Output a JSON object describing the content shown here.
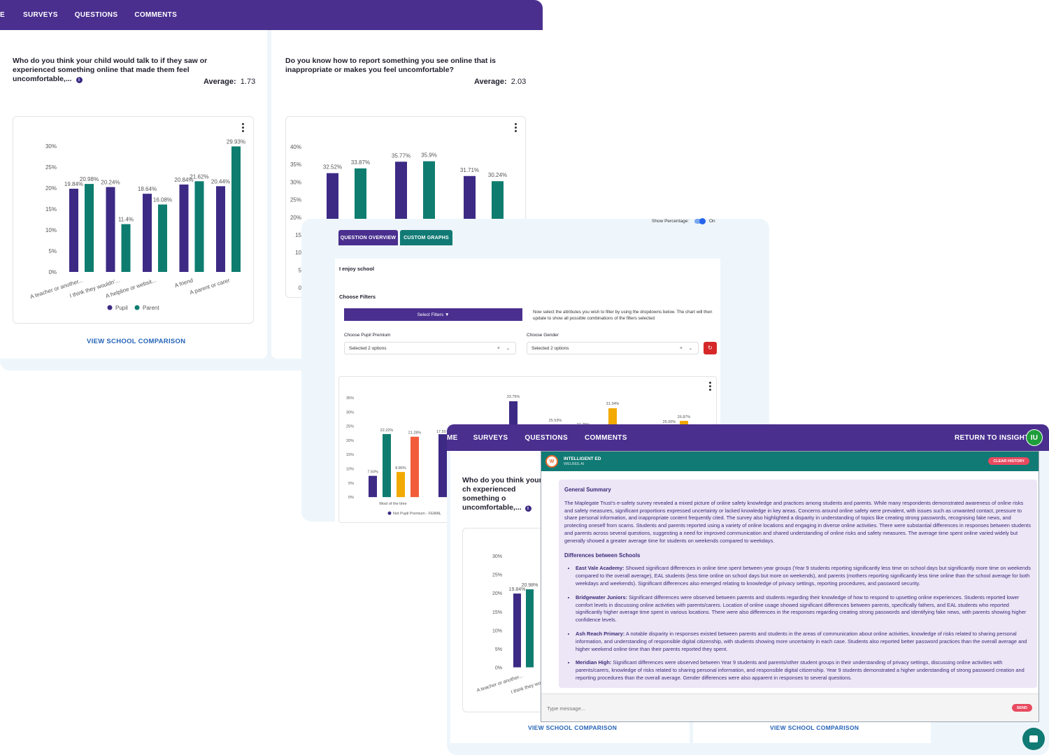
{
  "main_window": {
    "nav": [
      "E",
      "SURVEYS",
      "QUESTIONS",
      "COMMENTS"
    ],
    "card1": {
      "question": "Who do you think your child would talk to if they saw or experienced something online that made them feel uncomfortable,...",
      "average_label": "Average:",
      "average_value": "1.73",
      "link": "VIEW SCHOOL COMPARISON"
    },
    "card2": {
      "question": "Do you know how to report something you see online that is inappropriate or makes you feel uncomfortable?",
      "average_label": "Average:",
      "average_value": "2.03"
    }
  },
  "chart_data": [
    {
      "type": "bar",
      "categories": [
        "A teacher or another...",
        "I think they wouldn'...",
        "A helpline or websit...",
        "A friend",
        "A parent or carer"
      ],
      "series": [
        {
          "name": "Pupil",
          "values": [
            19.84,
            20.24,
            18.64,
            20.84,
            20.44
          ]
        },
        {
          "name": "Parent",
          "values": [
            20.98,
            11.4,
            16.08,
            21.62,
            29.93
          ]
        }
      ],
      "data_labels": {
        "Pupil": [
          "19.84%",
          "20.24%",
          "18.64%",
          "20.84%",
          "20.44%"
        ],
        "Parent": [
          "20.98%",
          "11.4%",
          "16.08%",
          "21.62%",
          "29.93%"
        ]
      },
      "yticks": [
        "0%",
        "5%",
        "10%",
        "15%",
        "20%",
        "25%",
        "30%"
      ],
      "ylim": [
        0,
        30
      ],
      "legend": "bottom"
    },
    {
      "type": "bar",
      "series": [
        {
          "values": [
            32.52,
            35.77,
            31.71
          ]
        },
        {
          "values": [
            33.87,
            35.9,
            30.24
          ]
        }
      ],
      "data_labels": [
        "32.52%",
        "33.87%",
        "35.77%",
        "35.9%",
        "31.71%",
        "30.24%"
      ],
      "yticks": [
        "40%",
        "35%",
        "30%",
        "25%",
        "20%",
        "15",
        "10",
        "5",
        "0"
      ],
      "ylim": [
        0,
        40
      ]
    },
    {
      "type": "bar",
      "values_left_group": [
        7.5,
        22.22,
        8.86,
        21.28
      ],
      "labels_left_group": [
        "7.50%",
        "22.22%",
        "8.86%",
        "21.28%"
      ],
      "other_labels": [
        "17.50",
        "33.75%",
        "25.53%",
        "22.75%",
        "31.34%",
        "25.00%",
        "26.87%"
      ],
      "yticks": [
        "35%",
        "30%",
        "25%",
        "20%",
        "15%",
        "10%",
        "5%",
        "0%"
      ],
      "category": "Most of the time",
      "legend_item": "Not Pupil Premium - FEMAL",
      "ylim": [
        0,
        35
      ]
    },
    {
      "type": "bar",
      "values": [
        19.84,
        20.98
      ],
      "labels": [
        "19.84%",
        "20.98%"
      ],
      "yticks": [
        "30%",
        "25%",
        "20%",
        "15%",
        "10%",
        "5%",
        "0%"
      ],
      "categories": [
        "A teacher or another...",
        "I think they wo"
      ],
      "ylim": [
        0,
        30
      ]
    }
  ],
  "filter_window": {
    "show_percentage_label": "Show Percentage:",
    "show_percentage_state": "On",
    "tabs": [
      "QUESTION OVERVIEW",
      "CUSTOM GRAPHS"
    ],
    "question": "I enjoy school",
    "choose_filters": "Choose Filters",
    "select_filters_btn": "Select Filters ▼",
    "filter_help": "Now select the attributes you wish to filter by using the dropdowns below. The chart will then update to show all possible combinations of the filters selected",
    "pupil_premium_label": "Choose Pupil Premium",
    "pupil_premium_value": "Selected 2 options",
    "gender_label": "Choose Gender",
    "gender_value": "Selected 2 options"
  },
  "ai_window": {
    "nav": [
      "ME",
      "SURVEYS",
      "QUESTIONS",
      "COMMENTS"
    ],
    "return_link": "RETURN TO INSIGHTS",
    "avatar": "IU",
    "question_partial": "Who do you think your ch experienced something o uncomfortable,...",
    "assistant_name": "INTELLIGENT ED",
    "assistant_sub": "WELBEE AI",
    "clear_history": "CLEAR HISTORY",
    "summary_title": "General Summary",
    "summary_text": "The Maplegate Trust's e-safety survey revealed a mixed picture of online safety knowledge and practices among students and parents. While many respondents demonstrated awareness of online risks and safety measures, significant proportions expressed uncertainty or lacked knowledge in key areas. Concerns around online safety were prevalent, with issues such as unwanted contact, pressure to share personal information, and inappropriate content frequently cited. The survey also highlighted a disparity in understanding of topics like creating strong passwords, recognising fake news, and protecting oneself from scams. Students and parents reported using a variety of online locations and engaging in diverse online activities. There were substantial differences in responses between students and parents across several questions, suggesting a need for improved communication and shared understanding of online risks and safety measures. The average time spent online varied widely but generally showed a greater average time for students on weekends compared to weekdays.",
    "diff_title": "Differences between Schools",
    "schools": [
      {
        "name": "East Vale Academy:",
        "text": "Showed significant differences in online time spent between year groups (Year 9 students reporting significantly less time on school days but significantly more time on weekends compared to the overall average), EAL students (less time online on school days but more on weekends), and parents (mothers reporting significantly less time online than the school average for both weekdays and weekends). Significant differences also emerged relating to knowledge of privacy settings, reporting procedures, and password security."
      },
      {
        "name": "Bridgewater Juniors:",
        "text": "Significant differences were observed between parents and students regarding their knowledge of how to respond to upsetting online experiences. Students reported lower comfort levels in discussing online activities with parents/carers. Location of online usage showed significant differences between parents, specifically fathers, and EAL students who reported significantly higher average time spent in various locations. There were also differences in the responses regarding creating strong passwords and identifying fake news, with parents showing higher confidence levels."
      },
      {
        "name": "Ash Reach Primary:",
        "text": "A notable disparity in responses existed between parents and students in the areas of communication about online activities, knowledge of risks related to sharing personal information, and understanding of responsible digital citizenship, with students showing more uncertainty in each case. Students also reported better password practices than the overall average and higher weekend online time than their parents reported they spent."
      },
      {
        "name": "Meridian High:",
        "text": "Significant differences were observed between Year 9 students and parents/other student groups in their understanding of privacy settings, discussing online activities with parents/carers, knowledge of risks related to sharing personal information, and responsible digital citizenship. Year 9 students demonstrated a higher understanding of strong password creation and reporting procedures than the overall average. Gender differences were also apparent in responses to several questions."
      }
    ],
    "input_placeholder": "Type message...",
    "send": "SEND",
    "links": [
      "VIEW SCHOOL COMPARISON",
      "VIEW SCHOOL COMPARISON"
    ]
  }
}
